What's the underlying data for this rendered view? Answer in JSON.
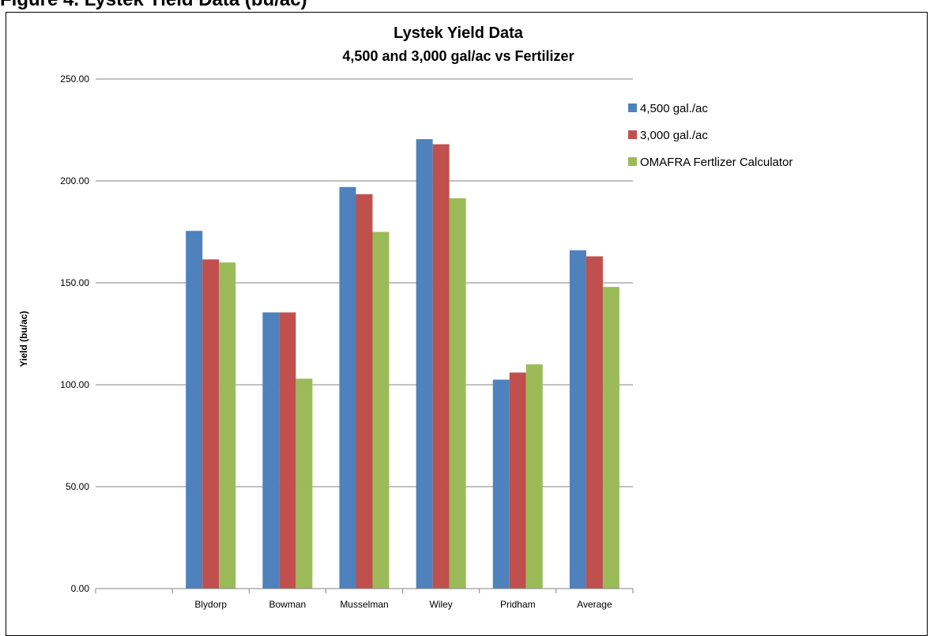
{
  "document": {
    "heading": "Figure 4. Lystek Yield Data (bu/ac)"
  },
  "colors": {
    "series_1": "#4F81BD",
    "series_2": "#C0504D",
    "series_3": "#9BBB59",
    "gridline": "#868686",
    "axis_text": "#000000"
  },
  "chart_data": {
    "type": "bar",
    "title": "Lystek Yield Data",
    "subtitle": "4,500 and 3,000 gal/ac vs Fertilizer",
    "xlabel": "",
    "ylabel": "Yield (bu/ac)",
    "ylim": [
      0,
      250
    ],
    "yticks": [
      "0.00",
      "50.00",
      "100.00",
      "150.00",
      "200.00",
      "250.00"
    ],
    "grid": true,
    "legend_position": "right",
    "categories": [
      "",
      "Blydorp",
      "Bowman",
      "Musselman",
      "Wiley",
      "Pridham",
      "Average"
    ],
    "series": [
      {
        "name": "4,500 gal./ac",
        "color": "#4F81BD",
        "values": [
          null,
          175.5,
          135.5,
          197.0,
          220.5,
          102.5,
          166.0
        ]
      },
      {
        "name": "3,000 gal./ac",
        "color": "#C0504D",
        "values": [
          null,
          161.5,
          135.5,
          193.5,
          218.0,
          106.0,
          163.0
        ]
      },
      {
        "name": "OMAFRA Fertlizer Calculator",
        "color": "#9BBB59",
        "values": [
          null,
          160.0,
          103.0,
          175.0,
          191.5,
          110.0,
          148.0
        ]
      }
    ]
  }
}
